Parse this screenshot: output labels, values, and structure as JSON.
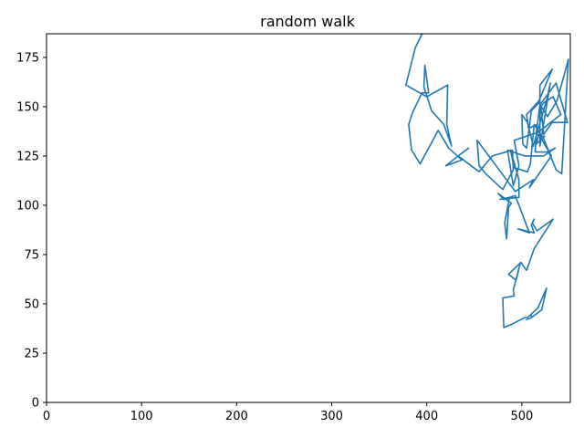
{
  "chart_data": {
    "type": "line",
    "title": "random walk",
    "xlabel": "",
    "ylabel": "",
    "xlim": [
      0,
      551
    ],
    "ylim": [
      0,
      187
    ],
    "xticks": [
      0,
      100,
      200,
      300,
      400,
      500
    ],
    "yticks": [
      0,
      25,
      50,
      75,
      100,
      125,
      150,
      175
    ],
    "grid": false,
    "legend": "none",
    "series": [
      {
        "color": "#1f77b4",
        "x": [
          395,
          388,
          378,
          400,
          422,
          421,
          426,
          418,
          405,
          397,
          398,
          402,
          395,
          385,
          381,
          384,
          393,
          412,
          423,
          437,
          420,
          433,
          444,
          433,
          455,
          469,
          490,
          491,
          480,
          462,
          455,
          453,
          493,
          512,
          508,
          531,
          518,
          515,
          524,
          522,
          536,
          542,
          549,
          537,
          527,
          518,
          510,
          505,
          501,
          500,
          506,
          512,
          527,
          530,
          519,
          519,
          532,
          518,
          505,
          507,
          516,
          514,
          527,
          535,
          523,
          503,
          485,
          491,
          497,
          492,
          517,
          541,
          533,
          523,
          520,
          523,
          532,
          548,
          536,
          519,
          515,
          521,
          513,
          509,
          506,
          492,
          488,
          497,
          497,
          477,
          487,
          482,
          484,
          486,
          489,
          475,
          481,
          493,
          508,
          496,
          513,
          510,
          513,
          511,
          516,
          533,
          513,
          505,
          499,
          486,
          494,
          498,
          491,
          492,
          480,
          481,
          491,
          503,
          506,
          517,
          526,
          521,
          510,
          505,
          510,
          510
        ],
        "y": [
          187,
          180,
          161,
          155,
          161,
          141,
          130,
          141,
          148,
          160,
          171,
          157,
          157,
          147,
          141,
          128,
          121,
          138,
          129,
          123,
          120,
          125,
          129,
          125,
          117,
          125,
          128,
          118,
          108,
          116,
          120,
          133,
          107,
          113,
          109,
          125,
          136,
          131,
          135,
          135,
          118,
          116,
          174,
          153,
          145,
          152,
          148,
          129,
          131,
          146,
          142,
          130,
          155,
          162,
          130,
          161,
          169,
          153,
          146,
          139,
          141,
          127,
          127,
          129,
          125,
          125,
          128,
          110,
          120,
          133,
          137,
          146,
          155,
          152,
          150,
          136,
          142,
          142,
          162,
          151,
          136,
          135,
          141,
          121,
          117,
          119,
          128,
          113,
          104,
          103,
          104,
          91,
          83,
          99,
          101,
          106,
          103,
          105,
          86,
          88,
          86,
          90,
          93,
          91,
          87,
          93,
          78,
          67,
          71,
          65,
          62,
          70,
          57,
          54,
          53,
          38,
          40,
          43,
          43,
          48,
          58,
          47,
          43,
          42,
          43,
          44
        ]
      }
    ]
  }
}
